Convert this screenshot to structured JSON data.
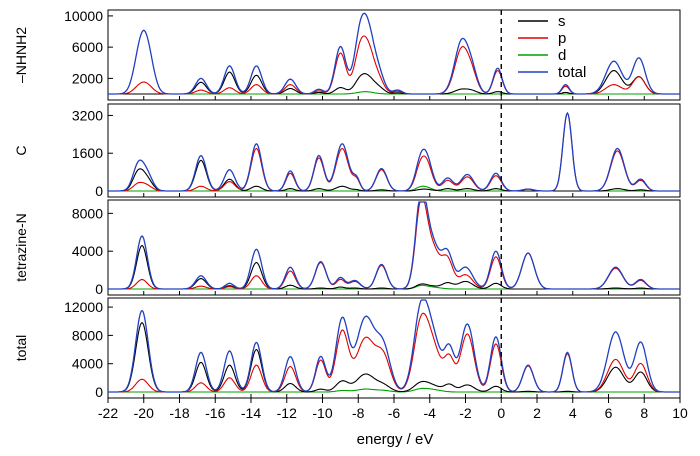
{
  "chart_data": {
    "type": "line",
    "xlabel": "energy / eV",
    "xlim": [
      -22,
      10
    ],
    "xticks": [
      -22,
      -20,
      -18,
      -16,
      -14,
      -12,
      -10,
      -8,
      -6,
      -4,
      -2,
      0,
      2,
      4,
      6,
      8,
      10
    ],
    "fermi_level": 0,
    "legend": {
      "placement": "top-right of first panel",
      "entries": [
        {
          "name": "s",
          "color": "#000000"
        },
        {
          "name": "p",
          "color": "#e00000"
        },
        {
          "name": "d",
          "color": "#00a000"
        },
        {
          "name": "total",
          "color": "#2040c0"
        }
      ]
    },
    "panels": [
      {
        "ylabel": "–NHNH2",
        "ylim": [
          0,
          10500
        ],
        "yticks": [
          2000,
          6000,
          10000
        ],
        "peaks": [
          {
            "x": -20.2,
            "w": 0.35,
            "total": 4800,
            "s": 0,
            "p": 900,
            "d": 0
          },
          {
            "x": -19.8,
            "w": 0.35,
            "total": 4800,
            "s": 0,
            "p": 900,
            "d": 0
          },
          {
            "x": -16.8,
            "w": 0.3,
            "total": 2000,
            "s": 1500,
            "p": 500,
            "d": 0
          },
          {
            "x": -15.2,
            "w": 0.3,
            "total": 3600,
            "s": 2800,
            "p": 800,
            "d": 0
          },
          {
            "x": -13.7,
            "w": 0.3,
            "total": 3600,
            "s": 2400,
            "p": 1200,
            "d": 0
          },
          {
            "x": -11.8,
            "w": 0.3,
            "total": 1900,
            "s": 700,
            "p": 1200,
            "d": 0
          },
          {
            "x": -10.2,
            "w": 0.25,
            "total": 600,
            "s": 200,
            "p": 400,
            "d": 0
          },
          {
            "x": -9.0,
            "w": 0.3,
            "total": 6000,
            "s": 800,
            "p": 5200,
            "d": 0
          },
          {
            "x": -8.0,
            "w": 0.25,
            "total": 1500,
            "s": 300,
            "p": 1200,
            "d": 0
          },
          {
            "x": -7.6,
            "w": 0.45,
            "total": 9800,
            "s": 2500,
            "p": 7000,
            "d": 300
          },
          {
            "x": -6.8,
            "w": 0.3,
            "total": 1500,
            "s": 500,
            "p": 1000,
            "d": 0
          },
          {
            "x": -5.8,
            "w": 0.25,
            "total": 500,
            "s": 150,
            "p": 350,
            "d": 0
          },
          {
            "x": -2.2,
            "w": 0.4,
            "total": 6800,
            "s": 600,
            "p": 5800,
            "d": 0
          },
          {
            "x": -1.6,
            "w": 0.3,
            "total": 2000,
            "s": 300,
            "p": 1700,
            "d": 0
          },
          {
            "x": -0.2,
            "w": 0.25,
            "total": 3300,
            "s": 300,
            "p": 3000,
            "d": 0
          },
          {
            "x": 3.6,
            "w": 0.2,
            "total": 1200,
            "s": 200,
            "p": 1000,
            "d": 0
          },
          {
            "x": 6.3,
            "w": 0.45,
            "total": 4200,
            "s": 3000,
            "p": 1200,
            "d": 0
          },
          {
            "x": 7.7,
            "w": 0.35,
            "total": 4600,
            "s": 2200,
            "p": 2200,
            "d": 0
          }
        ]
      },
      {
        "ylabel": "C",
        "ylim": [
          0,
          3600
        ],
        "yticks": [
          0,
          1600,
          3200
        ],
        "peaks": [
          {
            "x": -20.3,
            "w": 0.3,
            "total": 1100,
            "s": 800,
            "p": 300,
            "d": 0
          },
          {
            "x": -19.8,
            "w": 0.3,
            "total": 650,
            "s": 450,
            "p": 200,
            "d": 0
          },
          {
            "x": -16.8,
            "w": 0.3,
            "total": 1500,
            "s": 1300,
            "p": 200,
            "d": 0
          },
          {
            "x": -15.2,
            "w": 0.3,
            "total": 900,
            "s": 500,
            "p": 400,
            "d": 0
          },
          {
            "x": -13.7,
            "w": 0.3,
            "total": 2000,
            "s": 200,
            "p": 1800,
            "d": 0
          },
          {
            "x": -11.8,
            "w": 0.25,
            "total": 850,
            "s": 100,
            "p": 750,
            "d": 0
          },
          {
            "x": -10.2,
            "w": 0.28,
            "total": 1500,
            "s": 100,
            "p": 1400,
            "d": 0
          },
          {
            "x": -8.9,
            "w": 0.35,
            "total": 2000,
            "s": 200,
            "p": 1800,
            "d": 0
          },
          {
            "x": -8.1,
            "w": 0.2,
            "total": 500,
            "s": 50,
            "p": 450,
            "d": 0
          },
          {
            "x": -6.7,
            "w": 0.3,
            "total": 950,
            "s": 50,
            "p": 900,
            "d": 0
          },
          {
            "x": -4.5,
            "w": 0.3,
            "total": 1200,
            "s": 50,
            "p": 1000,
            "d": 150
          },
          {
            "x": -4.1,
            "w": 0.3,
            "total": 1000,
            "s": 50,
            "p": 850,
            "d": 100
          },
          {
            "x": -3.0,
            "w": 0.3,
            "total": 550,
            "s": 100,
            "p": 450,
            "d": 0
          },
          {
            "x": -1.9,
            "w": 0.35,
            "total": 700,
            "s": 100,
            "p": 600,
            "d": 0
          },
          {
            "x": -0.3,
            "w": 0.3,
            "total": 750,
            "s": 100,
            "p": 650,
            "d": 0
          },
          {
            "x": 1.5,
            "w": 0.3,
            "total": 80,
            "s": 0,
            "p": 80,
            "d": 0
          },
          {
            "x": 3.7,
            "w": 0.25,
            "total": 3300,
            "s": 0,
            "p": 3300,
            "d": 0
          },
          {
            "x": 6.5,
            "w": 0.38,
            "total": 1800,
            "s": 100,
            "p": 1700,
            "d": 0
          },
          {
            "x": 7.8,
            "w": 0.28,
            "total": 500,
            "s": 50,
            "p": 450,
            "d": 0
          }
        ]
      },
      {
        "ylabel": "tetrazine-N",
        "ylim": [
          0,
          9200
        ],
        "yticks": [
          0,
          4000,
          8000
        ],
        "peaks": [
          {
            "x": -20.1,
            "w": 0.3,
            "total": 5600,
            "s": 4600,
            "p": 1000,
            "d": 0
          },
          {
            "x": -16.8,
            "w": 0.3,
            "total": 1400,
            "s": 1100,
            "p": 300,
            "d": 0
          },
          {
            "x": -15.2,
            "w": 0.25,
            "total": 600,
            "s": 350,
            "p": 250,
            "d": 0
          },
          {
            "x": -13.7,
            "w": 0.3,
            "total": 4200,
            "s": 2800,
            "p": 1400,
            "d": 0
          },
          {
            "x": -11.8,
            "w": 0.28,
            "total": 2300,
            "s": 400,
            "p": 1900,
            "d": 0
          },
          {
            "x": -10.1,
            "w": 0.3,
            "total": 2900,
            "s": 100,
            "p": 2800,
            "d": 0
          },
          {
            "x": -9.0,
            "w": 0.25,
            "total": 1200,
            "s": 200,
            "p": 1000,
            "d": 0
          },
          {
            "x": -8.2,
            "w": 0.3,
            "total": 900,
            "s": 100,
            "p": 800,
            "d": 0
          },
          {
            "x": -6.7,
            "w": 0.3,
            "total": 2600,
            "s": 100,
            "p": 2500,
            "d": 0
          },
          {
            "x": -4.5,
            "w": 0.3,
            "total": 8500,
            "s": 400,
            "p": 7800,
            "d": 300
          },
          {
            "x": -3.9,
            "w": 0.45,
            "total": 5000,
            "s": 300,
            "p": 4500,
            "d": 200
          },
          {
            "x": -3.0,
            "w": 0.3,
            "total": 3400,
            "s": 600,
            "p": 2800,
            "d": 0
          },
          {
            "x": -2.0,
            "w": 0.4,
            "total": 2300,
            "s": 800,
            "p": 1500,
            "d": 0
          },
          {
            "x": -0.3,
            "w": 0.3,
            "total": 4000,
            "s": 600,
            "p": 3400,
            "d": 0
          },
          {
            "x": 1.5,
            "w": 0.35,
            "total": 3800,
            "s": 0,
            "p": 3800,
            "d": 0
          },
          {
            "x": 6.4,
            "w": 0.4,
            "total": 2300,
            "s": 100,
            "p": 2200,
            "d": 0
          },
          {
            "x": 7.8,
            "w": 0.3,
            "total": 1000,
            "s": 100,
            "p": 900,
            "d": 0
          }
        ]
      },
      {
        "ylabel": "total",
        "ylim": [
          0,
          13000
        ],
        "yticks": [
          0,
          4000,
          8000,
          12000
        ],
        "peaks": [
          {
            "x": -20.1,
            "w": 0.35,
            "total": 11500,
            "s": 9800,
            "p": 1800,
            "d": 0
          },
          {
            "x": -16.8,
            "w": 0.3,
            "total": 5600,
            "s": 4200,
            "p": 1300,
            "d": 0
          },
          {
            "x": -15.2,
            "w": 0.3,
            "total": 5800,
            "s": 3800,
            "p": 2000,
            "d": 0
          },
          {
            "x": -13.7,
            "w": 0.3,
            "total": 7000,
            "s": 6000,
            "p": 3800,
            "d": 0
          },
          {
            "x": -11.8,
            "w": 0.3,
            "total": 5000,
            "s": 1200,
            "p": 3600,
            "d": 0
          },
          {
            "x": -10.1,
            "w": 0.28,
            "total": 5000,
            "s": 400,
            "p": 4500,
            "d": 0
          },
          {
            "x": -8.9,
            "w": 0.35,
            "total": 10200,
            "s": 1500,
            "p": 8500,
            "d": 200
          },
          {
            "x": -7.6,
            "w": 0.5,
            "total": 10400,
            "s": 2500,
            "p": 7500,
            "d": 400
          },
          {
            "x": -6.6,
            "w": 0.4,
            "total": 6000,
            "s": 900,
            "p": 4800,
            "d": 200
          },
          {
            "x": -4.5,
            "w": 0.4,
            "total": 10800,
            "s": 1200,
            "p": 9000,
            "d": 400
          },
          {
            "x": -3.8,
            "w": 0.45,
            "total": 7000,
            "s": 800,
            "p": 5800,
            "d": 300
          },
          {
            "x": -2.9,
            "w": 0.28,
            "total": 5500,
            "s": 1000,
            "p": 4300,
            "d": 0
          },
          {
            "x": -1.9,
            "w": 0.38,
            "total": 9600,
            "s": 1000,
            "p": 8200,
            "d": 0
          },
          {
            "x": -0.3,
            "w": 0.3,
            "total": 7800,
            "s": 800,
            "p": 6800,
            "d": 0
          },
          {
            "x": 1.5,
            "w": 0.3,
            "total": 3800,
            "s": 100,
            "p": 3700,
            "d": 0
          },
          {
            "x": 3.7,
            "w": 0.25,
            "total": 5600,
            "s": 100,
            "p": 5400,
            "d": 0
          },
          {
            "x": 6.4,
            "w": 0.45,
            "total": 8500,
            "s": 3500,
            "p": 4600,
            "d": 0
          },
          {
            "x": 7.8,
            "w": 0.35,
            "total": 7000,
            "s": 2800,
            "p": 4000,
            "d": 0
          }
        ]
      }
    ]
  }
}
